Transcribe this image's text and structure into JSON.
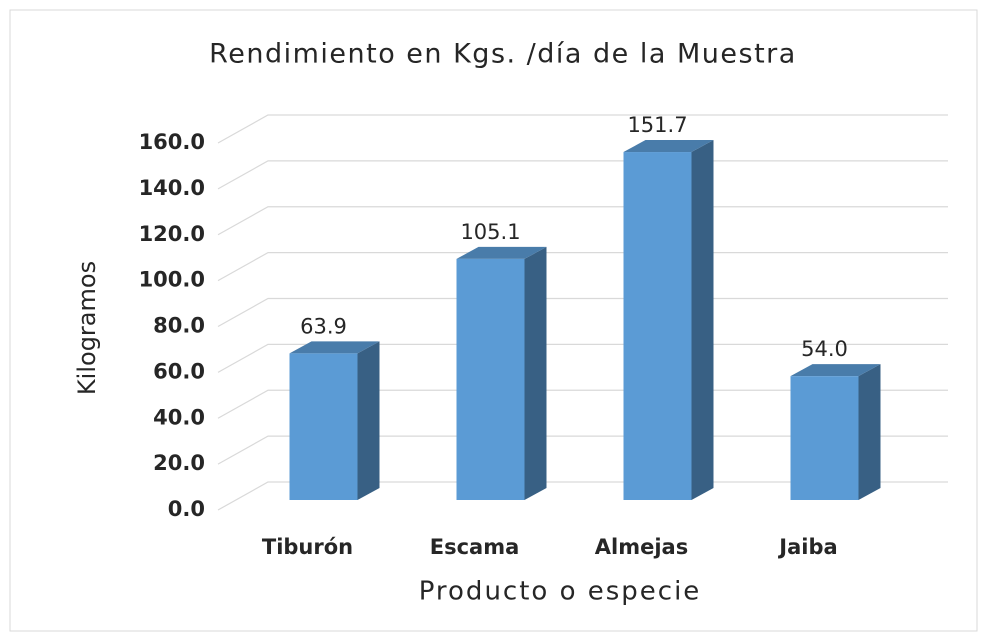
{
  "chart_data": {
    "type": "bar3d",
    "title": "Rendimiento en Kgs. /día de la Muestra",
    "x_label": "Producto o especie",
    "y_label": "Kilogramos",
    "categories": [
      "Tiburón",
      "Escama",
      "Almejas",
      "Jaiba"
    ],
    "values": [
      63.9,
      105.1,
      151.7,
      54.0
    ],
    "value_labels": [
      "63.9",
      "105.1",
      "151.7",
      "54.0"
    ],
    "color": "#5b9bd5",
    "ylim": [
      0,
      160
    ],
    "yticks": [
      {
        "value": 0,
        "label": "0.0"
      },
      {
        "value": 20,
        "label": "20.0"
      },
      {
        "value": 40,
        "label": "40.0"
      },
      {
        "value": 60,
        "label": "60.0"
      },
      {
        "value": 80,
        "label": "80.0"
      },
      {
        "value": 100,
        "label": "100.0"
      },
      {
        "value": 120,
        "label": "120.0"
      },
      {
        "value": 140,
        "label": "140.0"
      },
      {
        "value": 160,
        "label": "160.0"
      }
    ],
    "grid": true
  }
}
